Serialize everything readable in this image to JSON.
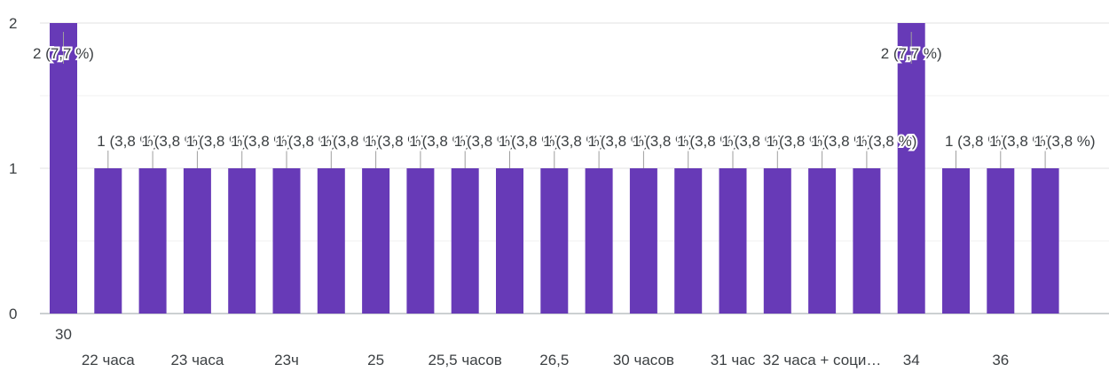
{
  "chart_data": {
    "type": "bar",
    "title": "",
    "xlabel": "",
    "ylabel": "",
    "ylim": [
      0,
      2
    ],
    "yticks": [
      "0",
      "1",
      "2"
    ],
    "grid": true,
    "legend": "none",
    "bar_color": "#673ab7",
    "categories": [
      "30",
      "22 часа",
      "",
      "23 часа",
      "",
      "23ч",
      "",
      "25",
      "",
      "25,5 часов",
      "",
      "26,5",
      "",
      "30 часов",
      "",
      "31 час",
      "",
      "32 часа + соци…",
      "",
      "34",
      "",
      "36",
      ""
    ],
    "values": [
      2,
      1,
      1,
      1,
      1,
      1,
      1,
      1,
      1,
      1,
      1,
      1,
      1,
      1,
      1,
      1,
      1,
      1,
      1,
      2,
      1,
      1,
      1
    ],
    "data_labels": [
      "2 (7,7 %)",
      "1 (3,8 %)",
      "1 (3,8 %)",
      "1 (3,8 %)",
      "1 (3,8 %)",
      "1 (3,8 %)",
      "1 (3,8 %)",
      "1 (3,8 %)",
      "1 (3,8 %)",
      "1 (3,8 %)",
      "1 (3,8 %)",
      "1 (3,8 %)",
      "1 (3,8 %)",
      "1 (3,8 %)",
      "1 (3,8 %)",
      "1 (3,8 %)",
      "1 (3,8 %)",
      "1 (3,8 %)",
      "1 (3,8 %)",
      "2 (7,7 %)",
      "1 (3,8 %)",
      "1 (3,8 %)",
      "1 (3,8 %)"
    ]
  }
}
